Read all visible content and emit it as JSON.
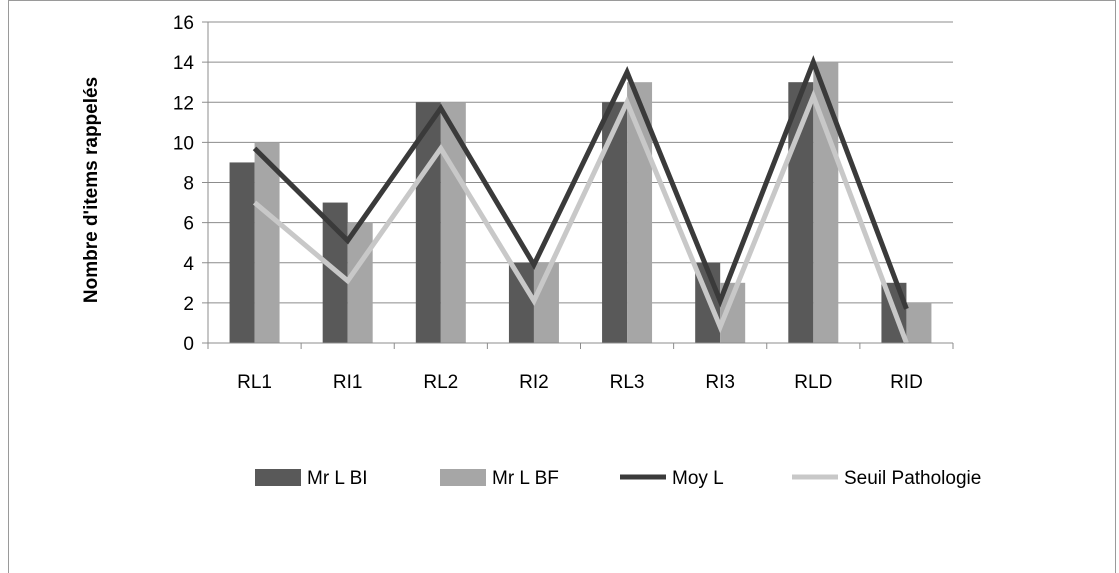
{
  "chart_data": {
    "type": "bar",
    "title": "",
    "xlabel": "",
    "ylabel": "Nombre d'items rappelés",
    "ylim": [
      0,
      16
    ],
    "yticks": [
      0,
      2,
      4,
      6,
      8,
      10,
      12,
      14,
      16
    ],
    "categories": [
      "RL1",
      "RI1",
      "RL2",
      "RI2",
      "RL3",
      "RI3",
      "RLD",
      "RID"
    ],
    "series": [
      {
        "name": "Mr L BI",
        "kind": "bar",
        "color": "#595959",
        "values": [
          9,
          7,
          12,
          4,
          12,
          4,
          13,
          3
        ]
      },
      {
        "name": "Mr L BF",
        "kind": "bar",
        "color": "#a6a6a6",
        "values": [
          10,
          6,
          12,
          4,
          13,
          3,
          14,
          2
        ]
      },
      {
        "name": "Moy L",
        "kind": "line",
        "color": "#3a3a3a",
        "values": [
          9.7,
          5.1,
          11.7,
          3.9,
          13.5,
          2.1,
          14.0,
          1.7
        ]
      },
      {
        "name": "Seuil Pathologie",
        "kind": "line",
        "color": "#c8c8c8",
        "values": [
          7.0,
          3.1,
          9.7,
          2.1,
          12.0,
          0.8,
          12.3,
          0.0
        ]
      }
    ],
    "grid": true,
    "legend_position": "bottom"
  }
}
